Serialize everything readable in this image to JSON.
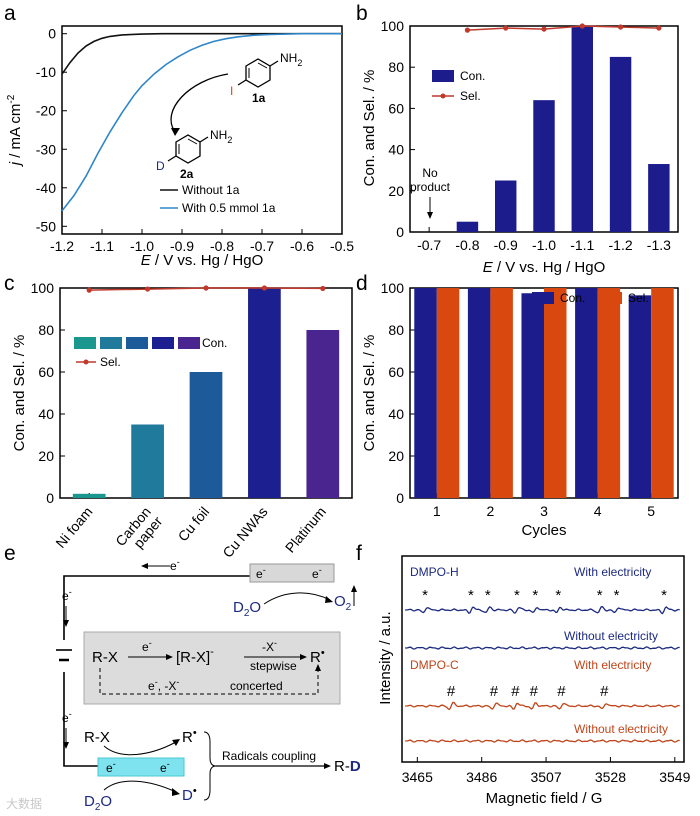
{
  "panels": [
    "a",
    "b",
    "c",
    "d",
    "e",
    "f"
  ],
  "chart_data": [
    {
      "id": "a",
      "type": "line",
      "xlabel_var": "E",
      "xlabel": " / V vs. Hg / HgO",
      "ylabel_var": "j",
      "ylabel": " / mA cm",
      "ylabel_sup": "-2",
      "xlim": [
        -1.2,
        -0.5
      ],
      "ylim": [
        -52,
        2
      ],
      "xticks": [
        "-1.2",
        "-1.1",
        "-1.0",
        "-0.9",
        "-0.8",
        "-0.7",
        "-0.6",
        "-0.5"
      ],
      "yticks": [
        "0",
        "-10",
        "-20",
        "-30",
        "-40",
        "-50"
      ],
      "series": [
        {
          "name": "Without 1a",
          "color": "#111111",
          "x": [
            -1.2,
            -1.18,
            -1.16,
            -1.14,
            -1.12,
            -1.1,
            -1.08,
            -1.05,
            -1.0,
            -0.95,
            -0.9,
            -0.8,
            -0.7,
            -0.6,
            -0.5
          ],
          "y": [
            -10.5,
            -7.5,
            -5,
            -3.2,
            -2,
            -1.2,
            -0.7,
            -0.3,
            -0.1,
            0,
            0,
            0,
            0,
            0,
            0
          ]
        },
        {
          "name": "With 0.5 mmol 1a",
          "color": "#2f86c8",
          "x": [
            -1.2,
            -1.17,
            -1.14,
            -1.11,
            -1.08,
            -1.05,
            -1.02,
            -1.0,
            -0.97,
            -0.94,
            -0.91,
            -0.88,
            -0.85,
            -0.82,
            -0.79,
            -0.76,
            -0.72,
            -0.68,
            -0.64,
            -0.6,
            -0.55,
            -0.5
          ],
          "y": [
            -46,
            -42,
            -37,
            -31,
            -25.5,
            -20.5,
            -16,
            -13.5,
            -10.5,
            -8,
            -6,
            -4.3,
            -3,
            -2,
            -1.3,
            -0.8,
            -0.4,
            -0.2,
            -0.1,
            0,
            0,
            0
          ]
        }
      ],
      "legend": [
        "Without 1a",
        "With 0.5 mmol 1a"
      ],
      "annotations": {
        "nh2": "NH",
        "nh2_sub": "2",
        "iodo": "I",
        "deut": "D",
        "reactant": "1a",
        "product": "2a"
      }
    },
    {
      "id": "b",
      "type": "bar",
      "xlabel_var": "E",
      "xlabel": " / V vs. Hg / HgO",
      "ylabel": "Con. and Sel. / %",
      "categories": [
        "-0.7",
        "-0.8",
        "-0.9",
        "-1.0",
        "-1.1",
        "-1.2",
        "-1.3"
      ],
      "series": [
        {
          "name": "Con.",
          "color": "#1c1c8c",
          "values": [
            0,
            5,
            25,
            64,
            100,
            85,
            33
          ]
        },
        {
          "name": "Sel.",
          "color": "#c0392b",
          "values": [
            null,
            98,
            99,
            98.5,
            100,
            99.5,
            99
          ]
        }
      ],
      "ylim": [
        0,
        100
      ],
      "yticks": [
        "0",
        "20",
        "40",
        "60",
        "80",
        "100"
      ],
      "annotation": [
        "No",
        "product"
      ]
    },
    {
      "id": "c",
      "type": "bar",
      "ylabel": "Con. and Sel. / %",
      "categories": [
        "Ni foam",
        "Carbon paper",
        "Cu foil",
        "Cu NWAs",
        "Platinum"
      ],
      "category_lines": [
        [
          "Ni foam"
        ],
        [
          "Carbon",
          "paper"
        ],
        [
          "Cu foil"
        ],
        [
          "Cu NWAs"
        ],
        [
          "Platinum"
        ]
      ],
      "bar_colors": [
        "#1a9890",
        "#1f7a9c",
        "#1d5a9a",
        "#1c1f8f",
        "#4a2590"
      ],
      "series": [
        {
          "name": "Con.",
          "values": [
            2,
            35,
            60,
            100,
            80
          ]
        },
        {
          "name": "Sel.",
          "color": "#c0392b",
          "values": [
            99,
            99.5,
            100,
            100,
            99.8
          ]
        }
      ],
      "ylim": [
        0,
        100
      ],
      "yticks": [
        "0",
        "20",
        "40",
        "60",
        "80",
        "100"
      ]
    },
    {
      "id": "d",
      "type": "bar",
      "xlabel": "Cycles",
      "ylabel": "Con. and Sel. / %",
      "categories": [
        "1",
        "2",
        "3",
        "4",
        "5"
      ],
      "series": [
        {
          "name": "Con.",
          "color": "#1c1c8c",
          "values": [
            100,
            100,
            97.5,
            100,
            96.5
          ]
        },
        {
          "name": "Sel.",
          "color": "#d9480f",
          "values": [
            100,
            100,
            100,
            100,
            100
          ]
        }
      ],
      "ylim": [
        0,
        100
      ],
      "yticks": [
        "0",
        "20",
        "40",
        "60",
        "80",
        "100"
      ]
    },
    {
      "id": "f",
      "type": "line",
      "xlabel": "Magnetic field / G",
      "ylabel": "Intensity / a.u.",
      "xticks": [
        "3465",
        "3486",
        "3507",
        "3528",
        "3549"
      ],
      "xlim": [
        3460,
        3552
      ],
      "series": [
        {
          "name": "DMPO-H",
          "condition": "With electricity",
          "color": "#1c2a80"
        },
        {
          "name": "DMPO-H",
          "condition": "Without electricity",
          "color": "#1c2a80"
        },
        {
          "name": "DMPO-C",
          "condition": "With electricity",
          "color": "#c0451a"
        },
        {
          "name": "DMPO-C",
          "condition": "Without electricity",
          "color": "#c0451a"
        }
      ],
      "peaks_h": [
        3467.5,
        3482.5,
        3488,
        3497.5,
        3503.5,
        3511,
        3524.5,
        3530,
        3545.5
      ],
      "peaks_c": [
        3476,
        3490,
        3497,
        3503,
        3512,
        3526
      ]
    }
  ],
  "scheme_e": {
    "electron": "e",
    "electron_sup": "-",
    "water": "D",
    "water_sub": "2",
    "water_tail": "O",
    "oxygen": "O",
    "oxygen_sub": "2",
    "rx": "R-X",
    "rx_radical": "[R-X]",
    "minus_x": "-X",
    "stepwise": "stepwise",
    "concerted": "concerted",
    "concerted_label": "e",
    "concerted_label2": ", -X",
    "radical": "R",
    "coupling": "Radicals coupling",
    "product": "R-D",
    "d_radical": "D"
  },
  "watermark": "大数据"
}
